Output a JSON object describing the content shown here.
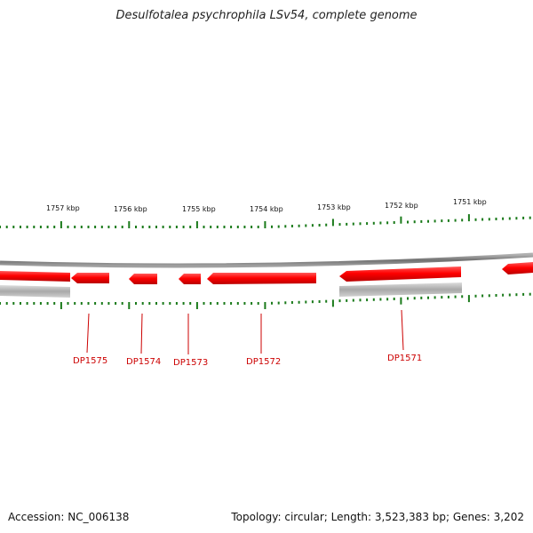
{
  "title": "Desulfotalea psychrophila LSv54, complete genome",
  "footer": {
    "accession": "Accession: NC_006138",
    "stats": "Topology: circular; Length: 3,523,383 bp; Genes: 3,202"
  },
  "scale_labels": [
    "1757 kbp",
    "1756 kbp",
    "1755 kbp",
    "1754 kbp",
    "1753 kbp",
    "1752 kbp",
    "1751 kbp"
  ],
  "genes": [
    {
      "name": "DP1575",
      "strand": "forward-gene-reverse-arrow"
    },
    {
      "name": "DP1574"
    },
    {
      "name": "DP1573"
    },
    {
      "name": "DP1572"
    },
    {
      "name": "DP1571"
    }
  ],
  "colors": {
    "gene": "#ff0000",
    "gene_label": "#cc0000",
    "tick": "#1a7a1a",
    "backbone": "#808080"
  }
}
